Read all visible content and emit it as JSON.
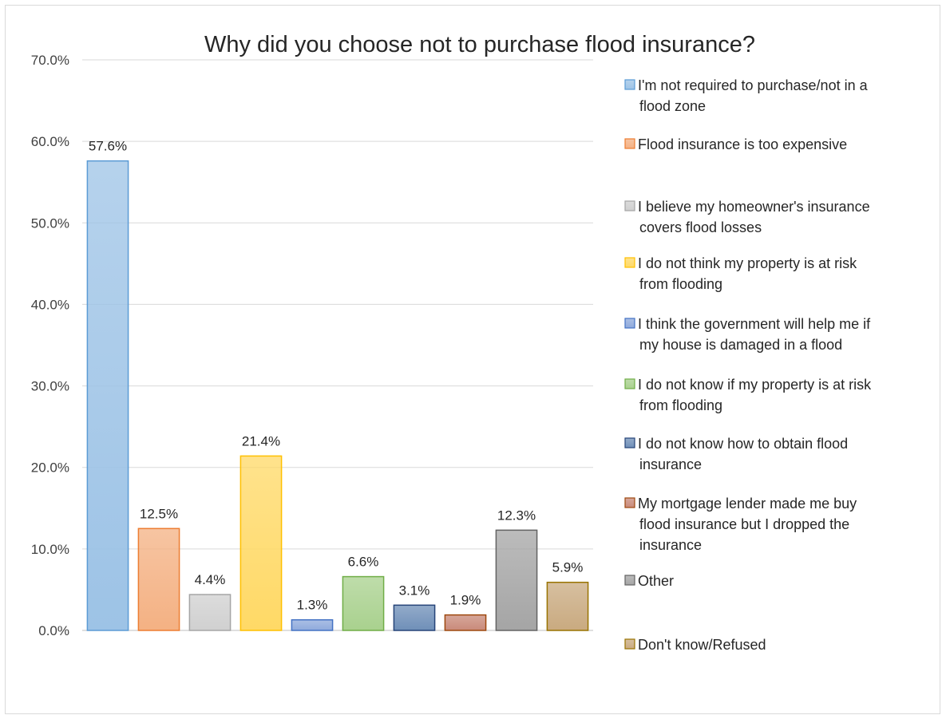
{
  "chart_data": {
    "type": "bar",
    "title": "Why did you choose not to purchase flood insurance?",
    "xlabel": "",
    "ylabel": "",
    "ylim": [
      0,
      70
    ],
    "yticks": [
      "0.0%",
      "10.0%",
      "20.0%",
      "30.0%",
      "40.0%",
      "50.0%",
      "60.0%",
      "70.0%"
    ],
    "grid": true,
    "legend_position": "right",
    "categories": [
      "I'm not required to purchase/not in a flood zone",
      "Flood insurance is too expensive",
      "I believe my homeowner's insurance covers flood losses",
      "I do not think my property is at risk from flooding",
      "I think the government will help me if my house is damaged in a flood",
      "I do not know if my property is at risk from flooding",
      "I do not know how to obtain flood insurance",
      "My mortgage lender made me buy flood insurance but I dropped the insurance",
      "Other",
      "Don't know/Refused"
    ],
    "values": [
      57.6,
      12.5,
      4.4,
      21.4,
      1.3,
      6.6,
      3.1,
      1.9,
      12.3,
      5.9
    ],
    "value_labels": [
      "57.6%",
      "12.5%",
      "4.4%",
      "21.4%",
      "1.3%",
      "6.6%",
      "3.1%",
      "1.9%",
      "12.3%",
      "5.9%"
    ],
    "colors": [
      "#9dc3e6",
      "#f4b183",
      "#d0d0d0",
      "#ffd966",
      "#8faadc",
      "#a9d18e",
      "#6f8fb8",
      "#c98a7a",
      "#a5a5a5",
      "#c9aa80"
    ],
    "border_colors": [
      "#5b9bd5",
      "#ed7d31",
      "#a5a5a5",
      "#ffc000",
      "#4472c4",
      "#70ad47",
      "#264478",
      "#9e480e",
      "#636363",
      "#997300"
    ],
    "legend": [
      {
        "lines": [
          "I'm not required to purchase/not in a",
          "flood zone"
        ]
      },
      {
        "lines": [
          "Flood insurance is too expensive"
        ]
      },
      {
        "lines": [
          "I believe my homeowner's insurance",
          "covers flood losses"
        ]
      },
      {
        "lines": [
          "I do not think my property is at risk",
          "from flooding"
        ]
      },
      {
        "lines": [
          "I think the government will help me if",
          "my house is damaged in a flood"
        ]
      },
      {
        "lines": [
          "I do not know if my property is at risk",
          "from flooding"
        ]
      },
      {
        "lines": [
          "I do not know how to obtain flood",
          "insurance"
        ]
      },
      {
        "lines": [
          "My mortgage lender made me buy",
          "flood insurance but I dropped the",
          "insurance"
        ]
      },
      {
        "lines": [
          "Other"
        ]
      },
      {
        "lines": [
          "Don't know/Refused"
        ]
      }
    ]
  }
}
